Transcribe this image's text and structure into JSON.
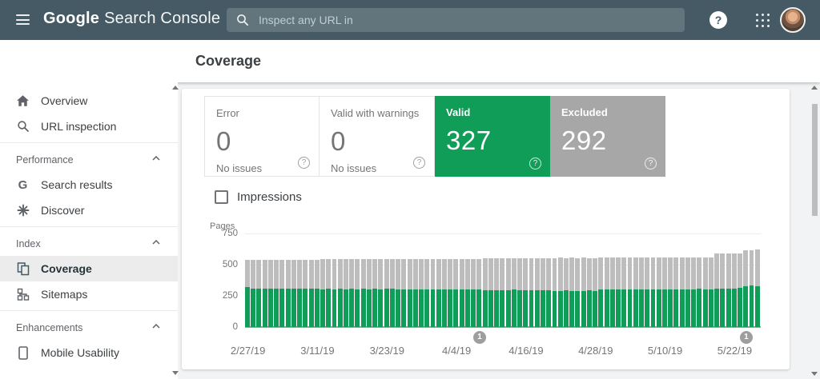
{
  "app_bar": {
    "product_first": "Google",
    "product_rest": "Search Console",
    "search_placeholder": "Inspect any URL in"
  },
  "page": {
    "title": "Coverage"
  },
  "sidebar": {
    "primary": [
      {
        "label": "Overview"
      },
      {
        "label": "URL inspection"
      }
    ],
    "sections": [
      {
        "title": "Performance",
        "items": [
          {
            "label": "Search results"
          },
          {
            "label": "Discover"
          }
        ]
      },
      {
        "title": "Index",
        "items": [
          {
            "label": "Coverage",
            "selected": true
          },
          {
            "label": "Sitemaps"
          }
        ]
      },
      {
        "title": "Enhancements",
        "items": [
          {
            "label": "Mobile Usability"
          }
        ]
      }
    ]
  },
  "cards": [
    {
      "label": "Error",
      "value": "0",
      "sub": "No issues",
      "style": "plain"
    },
    {
      "label": "Valid with warnings",
      "value": "0",
      "sub": "No issues",
      "style": "plain"
    },
    {
      "label": "Valid",
      "value": "327",
      "style": "green"
    },
    {
      "label": "Excluded",
      "value": "292",
      "style": "gray"
    }
  ],
  "impressions_label": "Impressions",
  "colors": {
    "topbar": "#455a64",
    "valid_green": "#0f9d58",
    "excluded_card_gray": "#a7a7a7",
    "excluded_bar_gray": "#bdbdbd",
    "annotation_gray": "#9e9e9e"
  },
  "chart_data": {
    "type": "bar",
    "stacked": true,
    "ylabel": "Pages",
    "ylim": [
      0,
      750
    ],
    "yticks": [
      0,
      250,
      500,
      750
    ],
    "grid": true,
    "legend": "none",
    "x_start": "2/27/19",
    "x_end": "5/26/19",
    "x_tick_labels": [
      {
        "index": 0,
        "label": "2/27/19"
      },
      {
        "index": 12,
        "label": "3/11/19"
      },
      {
        "index": 24,
        "label": "3/23/19"
      },
      {
        "index": 36,
        "label": "4/4/19"
      },
      {
        "index": 48,
        "label": "4/16/19"
      },
      {
        "index": 60,
        "label": "4/28/19"
      },
      {
        "index": 72,
        "label": "5/10/19"
      },
      {
        "index": 84,
        "label": "5/22/19"
      }
    ],
    "annotations": [
      {
        "index": 40,
        "label": "1"
      },
      {
        "index": 86,
        "label": "1"
      }
    ],
    "series": [
      {
        "name": "Valid",
        "color": "#0f9d58",
        "values": [
          322,
          310,
          308,
          309,
          310,
          307,
          309,
          308,
          310,
          309,
          308,
          310,
          309,
          304,
          305,
          303,
          305,
          304,
          306,
          304,
          305,
          303,
          305,
          304,
          306,
          305,
          300,
          301,
          299,
          300,
          302,
          300,
          299,
          301,
          300,
          299,
          301,
          300,
          302,
          300,
          301,
          297,
          298,
          296,
          298,
          297,
          299,
          297,
          296,
          298,
          297,
          298,
          296,
          291,
          290,
          292,
          289,
          291,
          290,
          292,
          290,
          299,
          301,
          300,
          302,
          300,
          301,
          299,
          302,
          300,
          301,
          303,
          302,
          304,
          303,
          302,
          304,
          303,
          305,
          303,
          304,
          309,
          308,
          310,
          309,
          311,
          330,
          333,
          327
        ]
      },
      {
        "name": "Excluded",
        "color": "#bdbdbd",
        "values": [
          214,
          228,
          230,
          229,
          228,
          231,
          229,
          230,
          228,
          230,
          229,
          228,
          230,
          238,
          237,
          239,
          238,
          240,
          237,
          239,
          238,
          240,
          238,
          239,
          237,
          238,
          246,
          247,
          245,
          248,
          246,
          247,
          248,
          246,
          247,
          248,
          246,
          247,
          245,
          248,
          247,
          254,
          253,
          255,
          254,
          256,
          253,
          255,
          256,
          254,
          255,
          253,
          256,
          263,
          265,
          262,
          266,
          263,
          265,
          262,
          264,
          257,
          256,
          258,
          255,
          258,
          256,
          258,
          255,
          257,
          256,
          257,
          258,
          256,
          258,
          257,
          255,
          258,
          256,
          258,
          257,
          278,
          280,
          277,
          280,
          278,
          283,
          283,
          292
        ]
      }
    ]
  }
}
